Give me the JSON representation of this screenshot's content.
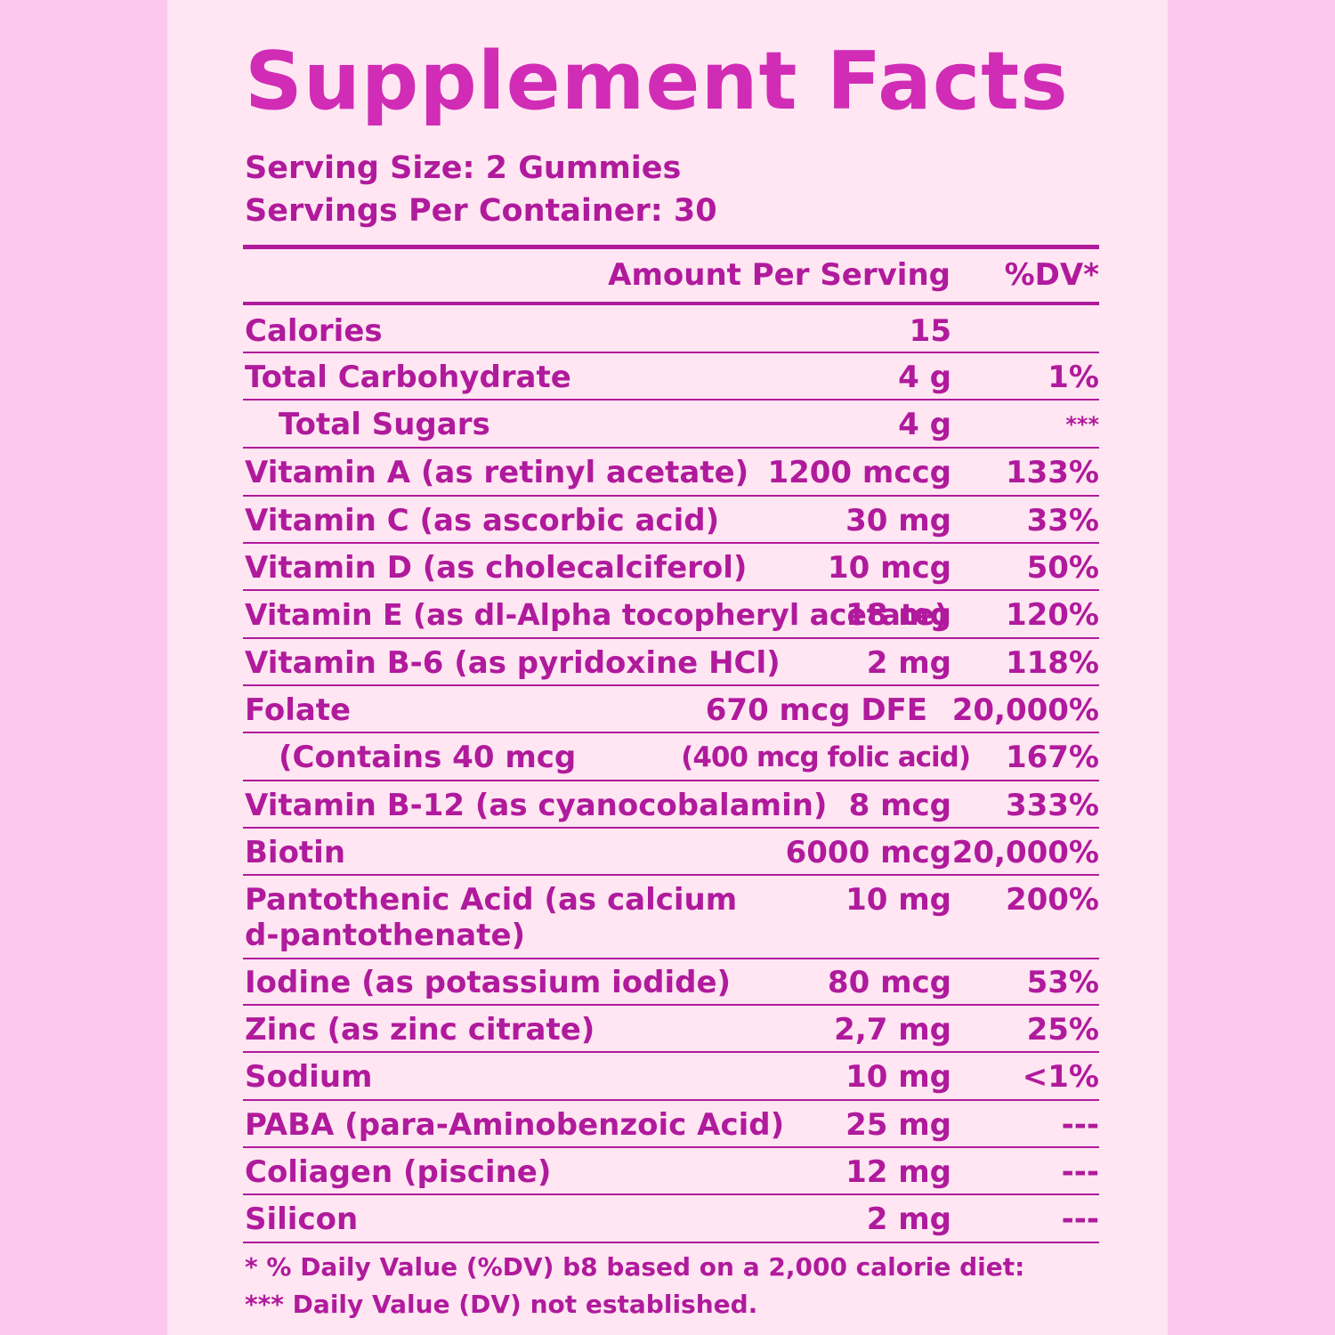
{
  "label": {
    "title": "Supplement Facts",
    "serving_size": "Serving Size: 2 Gummies",
    "servings_per_container": "Servings Per Container: 30",
    "header_amount": "Amount Per Serving",
    "header_dv": "%DV*"
  },
  "rows": [
    {
      "name": "Calories",
      "amount": "15",
      "dv": ""
    },
    {
      "name": "Total Carbohydrate",
      "amount": "4 g",
      "dv": "1%"
    },
    {
      "name": "Total Sugars",
      "amount": "4 g",
      "dv": "***"
    },
    {
      "name": "Vitamin A (as retinyl acetate)",
      "amount": "1200 mccg",
      "dv": "133%"
    },
    {
      "name": "Vitamin C (as ascorbic acid)",
      "amount": "30 mg",
      "dv": "33%"
    },
    {
      "name": "Vitamin D (as cholecalciferol)",
      "amount": "10 mcg",
      "dv": "50%"
    },
    {
      "name": "Vitamin E (as dl-Alpha tocopheryl acetate)",
      "amount": "18 mg",
      "dv": "120%"
    },
    {
      "name": "Vitamin B-6 (as pyridoxine HCl)",
      "amount": "2 mg",
      "dv": "118%"
    },
    {
      "name": "Folate",
      "amount": "670 mcg DFE",
      "dv": "20,000%"
    },
    {
      "name": "(Contains 40 mcg",
      "amount": "(400 mcg folic acid)",
      "dv": "167%"
    },
    {
      "name": "Vitamin B-12 (as cyanocobalamin)",
      "amount": "8 mcg",
      "dv": "333%"
    },
    {
      "name": "Biotin",
      "amount": "6000 mcg",
      "dv": "20,000%"
    },
    {
      "name": "Pantothenic Acid (as calcium",
      "name2": "d-pantothenate)",
      "amount": "10 mg",
      "dv": "200%"
    },
    {
      "name": "Iodine (as potassium iodide)",
      "amount": "80 mcg",
      "dv": "53%"
    },
    {
      "name": "Zinc (as zinc citrate)",
      "amount": "2,7 mg",
      "dv": "25%"
    },
    {
      "name": "Sodium",
      "amount": "10 mg",
      "dv": "<1%"
    },
    {
      "name": "PABA (para-Aminobenzoic Acid)",
      "amount": "25 mg",
      "dv": "---"
    },
    {
      "name": "Coliagen (piscine)",
      "amount": "12 mg",
      "dv": "---"
    },
    {
      "name": "Silicon",
      "amount": "2 mg",
      "dv": "---"
    }
  ],
  "footnotes": {
    "dv_note": "* % Daily Value (%DV) b8 based on a 2,000 calorie diet:",
    "not_established": "*** Daily Value (DV) not established."
  }
}
